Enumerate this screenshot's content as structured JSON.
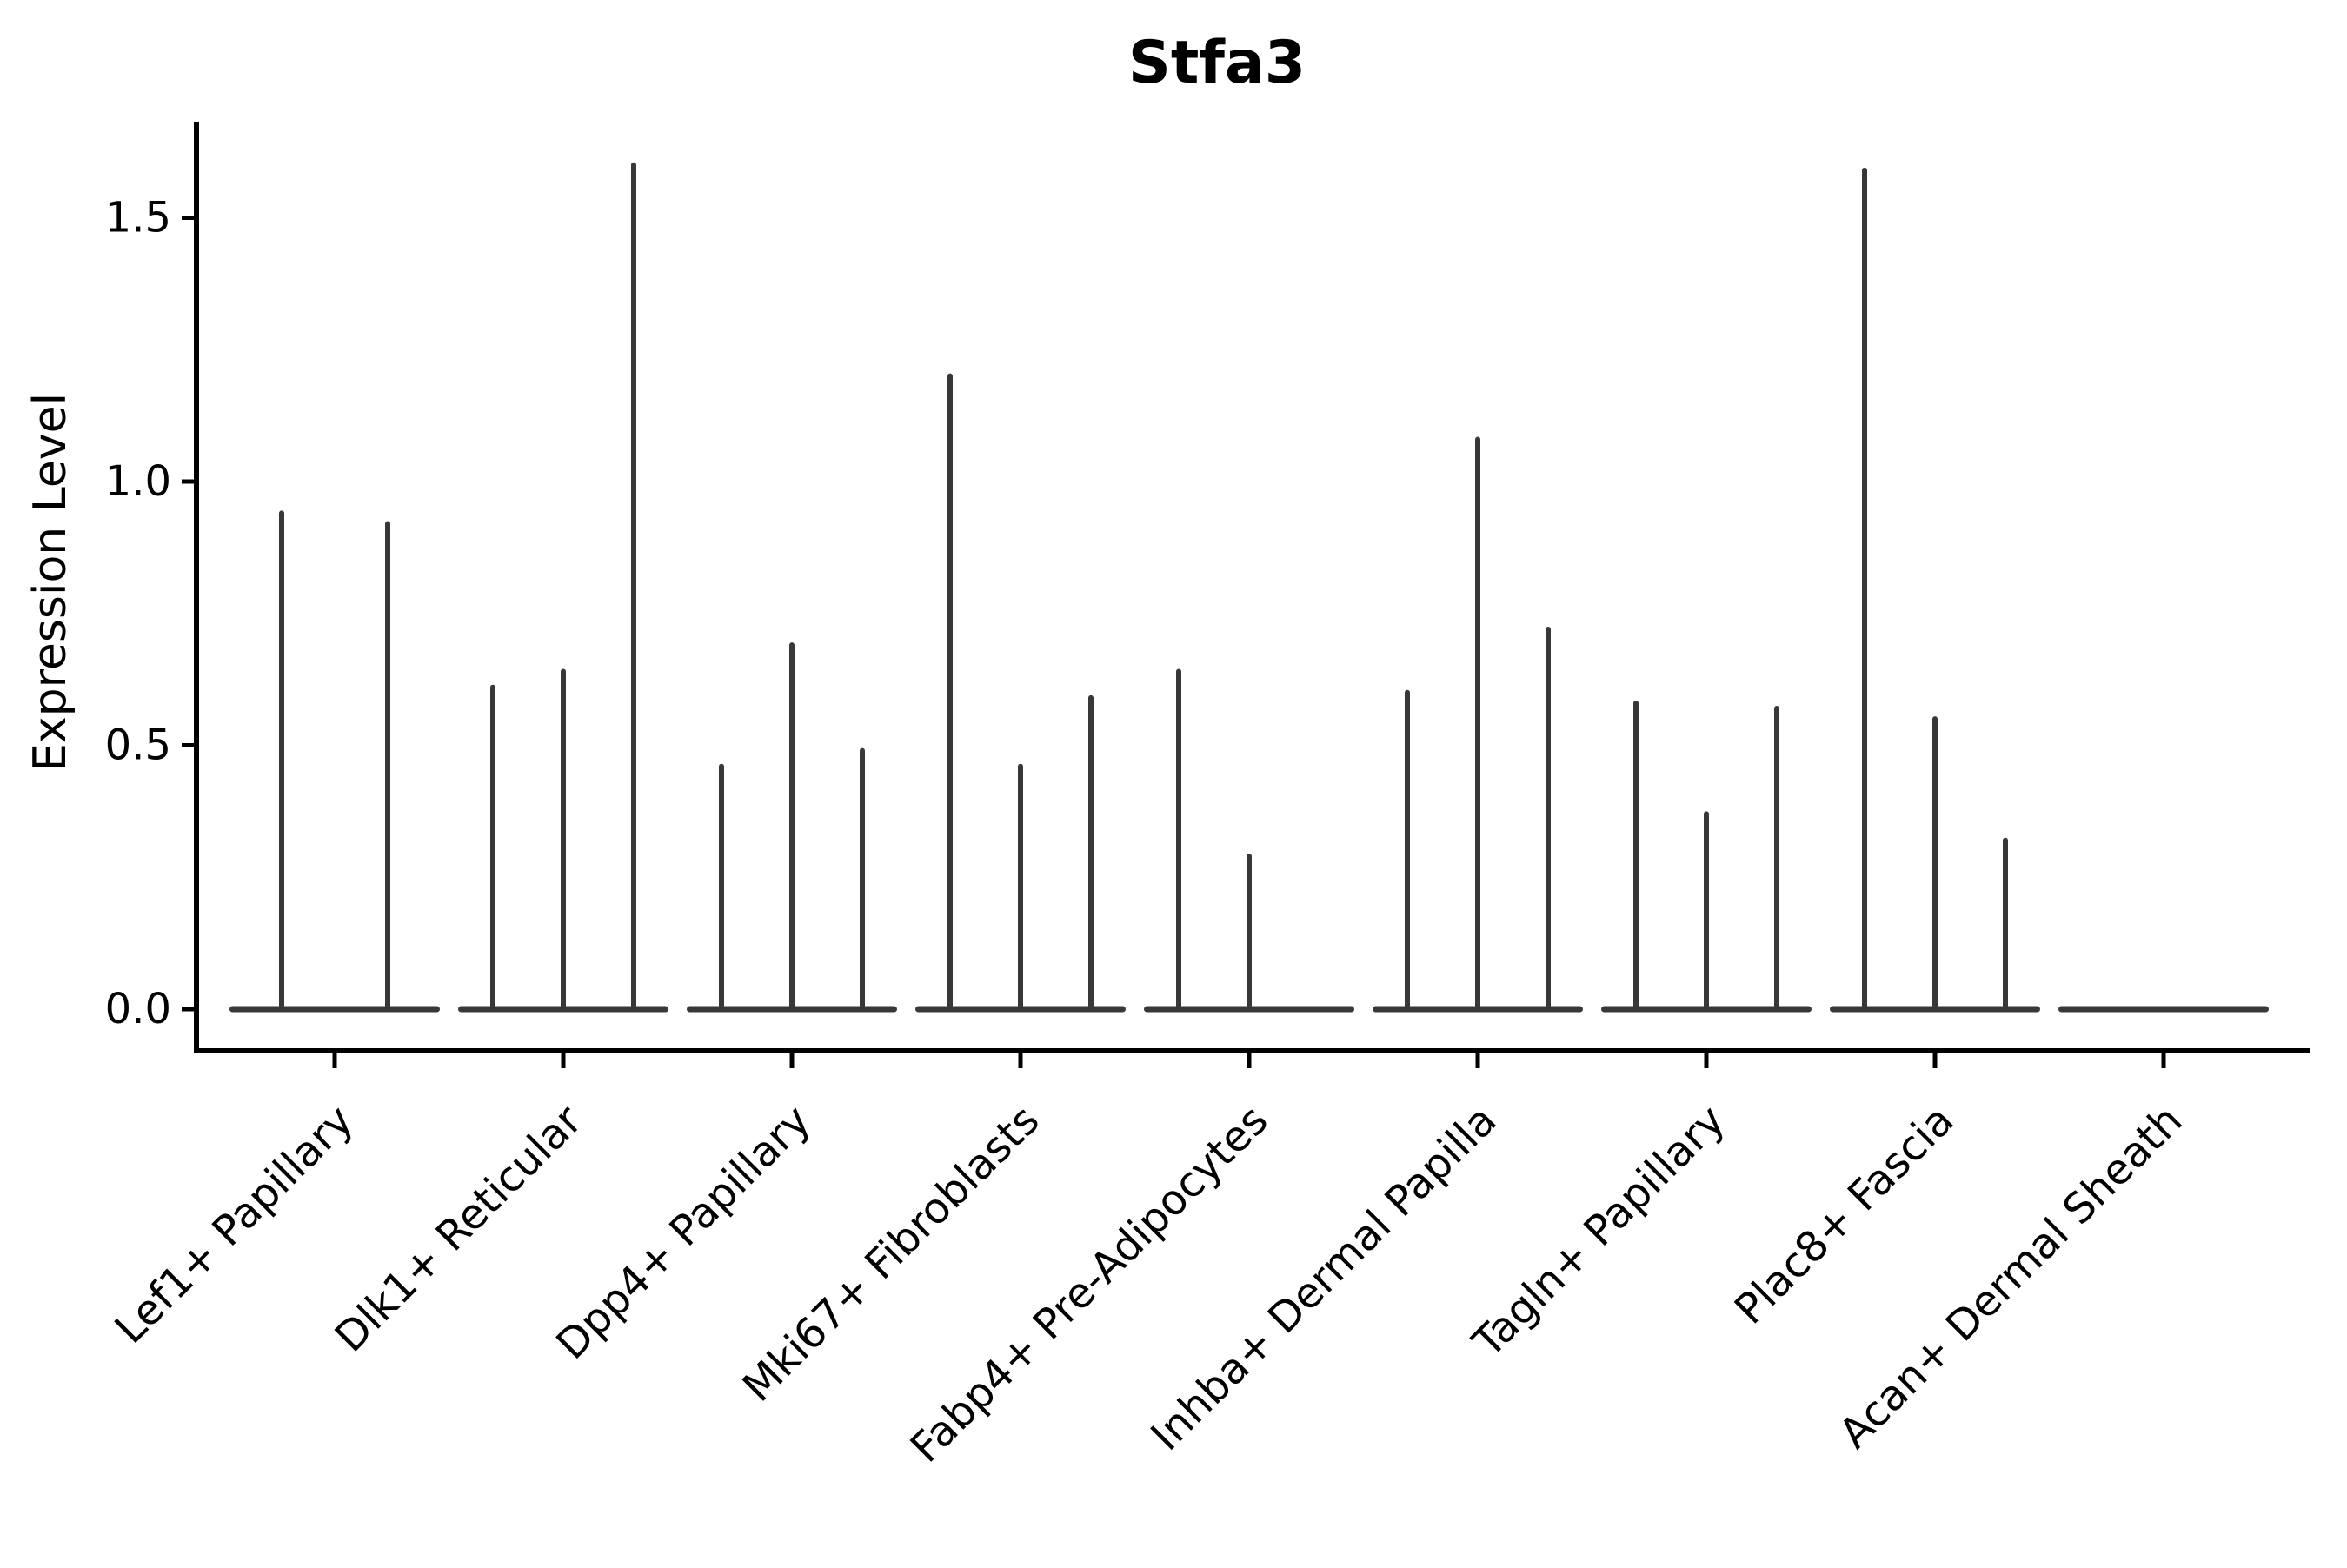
{
  "figure": {
    "title": "Stfa3",
    "y_axis_label": "Expression Level"
  },
  "chart_data": {
    "type": "violin",
    "title": "Stfa3",
    "xlabel": "",
    "ylabel": "Expression Level",
    "ylim": [
      -0.08,
      1.68
    ],
    "yticks": [
      0.0,
      0.5,
      1.0,
      1.5
    ],
    "ytick_labels": [
      "0.0",
      "0.5",
      "1.0",
      "1.5"
    ],
    "grid": false,
    "legend": "none",
    "description": "Violin plot of Stfa3 expression; each cluster shows violins collapsed to a flat base at 0 with thin needle spikes reaching each group's maximum expression value.",
    "categories": [
      "Lef1+ Papillary",
      "Dlk1+ Reticular",
      "Dpp4+ Papillary",
      "Mki67+ Fibroblasts",
      "Fabp4+ Pre-Adipocytes",
      "Inhba+ Dermal Papilla",
      "Tagln+ Papillary",
      "Plac8+ Fascia",
      "Acan+ Dermal Sheath"
    ],
    "violins": [
      {
        "category": "Lef1+ Papillary",
        "needles": [
          {
            "offset": -61,
            "max": 0.94
          },
          {
            "offset": 61,
            "max": 0.92
          }
        ]
      },
      {
        "category": "Dlk1+ Reticular",
        "needles": [
          {
            "offset": -81,
            "max": 0.61
          },
          {
            "offset": 0,
            "max": 0.64
          },
          {
            "offset": 81,
            "max": 1.6
          }
        ]
      },
      {
        "category": "Dpp4+ Papillary",
        "needles": [
          {
            "offset": -81,
            "max": 0.46
          },
          {
            "offset": 0,
            "max": 0.69
          },
          {
            "offset": 81,
            "max": 0.49
          }
        ]
      },
      {
        "category": "Mki67+ Fibroblasts",
        "needles": [
          {
            "offset": -81,
            "max": 1.2
          },
          {
            "offset": 0,
            "max": 0.46
          },
          {
            "offset": 81,
            "max": 0.59
          }
        ]
      },
      {
        "category": "Fabp4+ Pre-Adipocytes",
        "needles": [
          {
            "offset": -81,
            "max": 0.64
          },
          {
            "offset": 0,
            "max": 0.29
          },
          {
            "offset": 81,
            "max": 0.0
          }
        ]
      },
      {
        "category": "Inhba+ Dermal Papilla",
        "needles": [
          {
            "offset": -81,
            "max": 0.6
          },
          {
            "offset": 0,
            "max": 1.08
          },
          {
            "offset": 81,
            "max": 0.72
          }
        ]
      },
      {
        "category": "Tagln+ Papillary",
        "needles": [
          {
            "offset": -81,
            "max": 0.58
          },
          {
            "offset": 0,
            "max": 0.37
          },
          {
            "offset": 81,
            "max": 0.57
          }
        ]
      },
      {
        "category": "Plac8+ Fascia",
        "needles": [
          {
            "offset": -81,
            "max": 1.59
          },
          {
            "offset": 0,
            "max": 0.55
          },
          {
            "offset": 81,
            "max": 0.32
          }
        ]
      },
      {
        "category": "Acan+ Dermal Sheath",
        "needles": [
          {
            "offset": -81,
            "max": 0.0
          },
          {
            "offset": 0,
            "max": 0.0
          },
          {
            "offset": 81,
            "max": 0.0
          }
        ]
      }
    ],
    "colors": {
      "spine": "#000000",
      "violin": "#383838",
      "text": "#000000",
      "background": "#ffffff"
    }
  }
}
